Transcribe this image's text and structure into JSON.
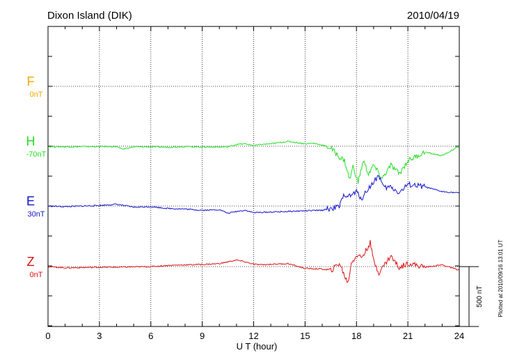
{
  "chart_data": {
    "type": "line",
    "title": "Dixon Island (DIK)",
    "date": "2010/04/19",
    "xlabel": "U T (hour)",
    "xlim": [
      0,
      24
    ],
    "xticks": [
      "0",
      "3",
      "6",
      "9",
      "12",
      "15",
      "18",
      "21",
      "24"
    ],
    "grid": true,
    "scale_label": "500 nT",
    "plot_stamp": "Plotted at 2010/09/16 13:01 UT",
    "series": [
      {
        "name": "F",
        "baseline": "0nT",
        "color": "#f5a800",
        "x": [],
        "y": []
      },
      {
        "name": "H",
        "baseline": "-70nT",
        "color": "#22dd22",
        "x": [
          0,
          1,
          2,
          3,
          4,
          4.3,
          5,
          6,
          7,
          8,
          9,
          10,
          10.5,
          11,
          11.5,
          12,
          12.5,
          13,
          13.5,
          14,
          14.5,
          15,
          15.5,
          16,
          16.5,
          17,
          17.3,
          17.6,
          17.8,
          18.1,
          18.4,
          18.7,
          19,
          19.5,
          20,
          20.5,
          21,
          22,
          23,
          24
        ],
        "y": [
          -3,
          -5,
          -3,
          -4,
          -3,
          -25,
          -6,
          -5,
          -8,
          -3,
          -6,
          -7,
          -5,
          15,
          20,
          5,
          15,
          20,
          30,
          40,
          30,
          20,
          25,
          10,
          -15,
          -90,
          -120,
          -280,
          -170,
          -300,
          -120,
          -230,
          -160,
          -270,
          -160,
          -230,
          -120,
          -50,
          -80,
          0
        ]
      },
      {
        "name": "E",
        "baseline": "30nT",
        "color": "#1111cc",
        "x": [
          0,
          1,
          2,
          3,
          4,
          5,
          6,
          7,
          8,
          9,
          10,
          10.5,
          11,
          11.5,
          12,
          13,
          14,
          15,
          16,
          16.5,
          17,
          17.3,
          17.6,
          18,
          18.3,
          18.6,
          19,
          19.3,
          19.6,
          20,
          20.5,
          21,
          22,
          23,
          24
        ],
        "y": [
          0,
          -5,
          0,
          5,
          15,
          -10,
          -5,
          -20,
          -25,
          -35,
          -30,
          -60,
          -45,
          -35,
          -55,
          -50,
          -45,
          -40,
          -35,
          -20,
          -5,
          100,
          80,
          120,
          60,
          130,
          200,
          260,
          150,
          160,
          110,
          180,
          160,
          120,
          110
        ]
      },
      {
        "name": "Z",
        "baseline": "0nT",
        "color": "#dd1111",
        "x": [
          0,
          1,
          2,
          3,
          4,
          5,
          6,
          7,
          8,
          9,
          10,
          10.5,
          11,
          11.5,
          12,
          12.5,
          13,
          14,
          15,
          16,
          16.5,
          17,
          17.2,
          17.5,
          17.7,
          18,
          18.3,
          18.5,
          18.8,
          19,
          19.3,
          20,
          20.5,
          21,
          22,
          23,
          24
        ],
        "y": [
          0,
          -10,
          -8,
          -5,
          -5,
          -2,
          0,
          10,
          15,
          18,
          25,
          40,
          55,
          40,
          20,
          15,
          20,
          25,
          -15,
          -20,
          -35,
          30,
          -40,
          -140,
          30,
          95,
          80,
          120,
          200,
          50,
          -50,
          90,
          -10,
          30,
          -5,
          15,
          -30
        ]
      }
    ]
  }
}
